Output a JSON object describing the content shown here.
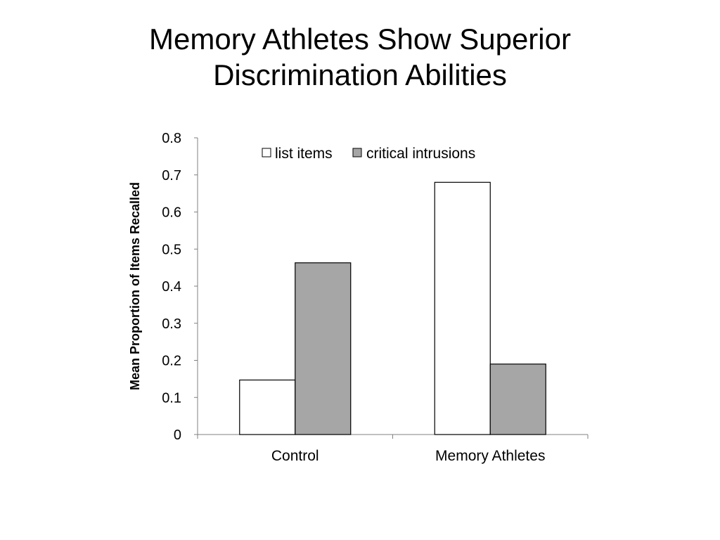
{
  "slide": {
    "title_line1": "Memory Athletes Show Superior",
    "title_line2": "Discrimination Abilities"
  },
  "chart_data": {
    "type": "bar",
    "categories": [
      "Control",
      "Memory Athletes"
    ],
    "series": [
      {
        "name": "list items",
        "values": [
          0.147,
          0.68
        ],
        "color": "#ffffff"
      },
      {
        "name": "critical intrusions",
        "values": [
          0.463,
          0.19
        ],
        "color": "#a6a6a6"
      }
    ],
    "xlabel": "",
    "ylabel": "Mean Proportion of Items Recalled",
    "ylim": [
      0,
      0.8
    ],
    "yticks": [
      "0",
      "0.1",
      "0.2",
      "0.3",
      "0.4",
      "0.5",
      "0.6",
      "0.7",
      "0.8"
    ],
    "grid": false,
    "legend_position": "top"
  }
}
